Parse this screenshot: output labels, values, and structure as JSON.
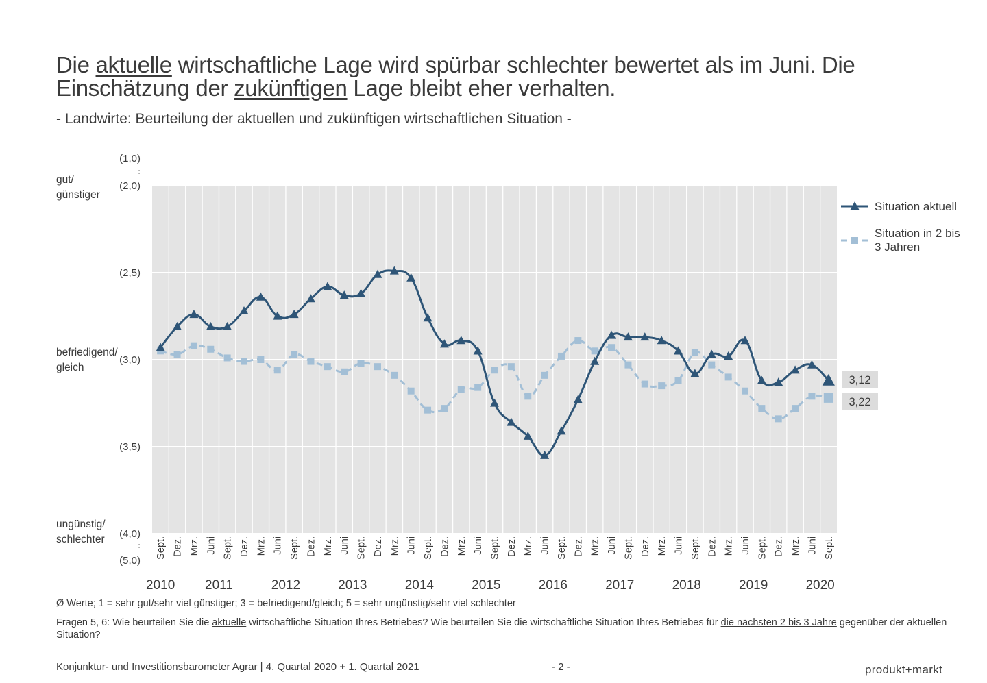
{
  "title": {
    "part1": "Die ",
    "u1": "aktuelle",
    "part2": " wirtschaftliche Lage wird spürbar schlechter bewertet als im Juni. Die Einschätzung der ",
    "u2": "zukünftigen",
    "part3": " Lage bleibt eher verhalten."
  },
  "subtitle": "- Landwirte: Beurteilung der aktuellen und zukünftigen wirtschaftlichen Situation -",
  "side_labels": {
    "good_1": "gut/",
    "good_2": "günstiger",
    "mid_1": "befriedigend/",
    "mid_2": "gleich",
    "bad_1": "ungünstig/",
    "bad_2": "schlechter"
  },
  "chart_data": {
    "type": "line",
    "ylim": [
      2.0,
      4.0
    ],
    "y_inverted": true,
    "grid": true,
    "legend_position": "right",
    "y_ticks": [
      {
        "value": 2.0,
        "label": "(2,0)"
      },
      {
        "value": 2.5,
        "label": "(2,5)"
      },
      {
        "value": 3.0,
        "label": "(3,0)"
      },
      {
        "value": 3.5,
        "label": "(3,5)"
      },
      {
        "value": 4.0,
        "label": "(4,0)"
      }
    ],
    "y_extra_labels": {
      "top": "(1,0)",
      "bottom": "(5,0)"
    },
    "x": [
      "Sept.",
      "Dez.",
      "Mrz.",
      "Juni",
      "Sept.",
      "Dez.",
      "Mrz.",
      "Juni",
      "Sept.",
      "Dez.",
      "Mrz.",
      "Juni",
      "Sept.",
      "Dez.",
      "Mrz.",
      "Juni",
      "Sept.",
      "Dez.",
      "Mrz.",
      "Juni",
      "Sept.",
      "Dez.",
      "Mrz.",
      "Juni",
      "Sept.",
      "Dez.",
      "Mrz.",
      "Juni",
      "Sept.",
      "Dez.",
      "Mrz.",
      "Juni",
      "Sept.",
      "Dez.",
      "Mrz.",
      "Juni",
      "Sept.",
      "Dez.",
      "Mrz.",
      "Juni",
      "Sept."
    ],
    "years": [
      {
        "label": "2010",
        "index": 0
      },
      {
        "label": "2011",
        "index": 3.5
      },
      {
        "label": "2012",
        "index": 7.5
      },
      {
        "label": "2013",
        "index": 11.5
      },
      {
        "label": "2014",
        "index": 15.5
      },
      {
        "label": "2015",
        "index": 19.5
      },
      {
        "label": "2016",
        "index": 23.5
      },
      {
        "label": "2017",
        "index": 27.5
      },
      {
        "label": "2018",
        "index": 31.5
      },
      {
        "label": "2019",
        "index": 35.5
      },
      {
        "label": "2020",
        "index": 39.5
      }
    ],
    "series": [
      {
        "name": "Situation aktuell",
        "color": "#2e5577",
        "marker": "triangle",
        "values": [
          2.93,
          2.81,
          2.74,
          2.81,
          2.81,
          2.72,
          2.64,
          2.75,
          2.74,
          2.65,
          2.58,
          2.63,
          2.62,
          2.51,
          2.49,
          2.53,
          2.76,
          2.91,
          2.89,
          2.95,
          3.25,
          3.36,
          3.44,
          3.55,
          3.41,
          3.23,
          3.01,
          2.86,
          2.87,
          2.87,
          2.89,
          2.95,
          3.08,
          2.97,
          2.98,
          2.89,
          3.12,
          3.13,
          3.06,
          3.03,
          3.12
        ]
      },
      {
        "name": "Situation in 2 bis 3 Jahren",
        "color": "#a3bfd6",
        "marker": "square",
        "values": [
          2.95,
          2.97,
          2.92,
          2.94,
          2.99,
          3.01,
          3.0,
          3.06,
          2.97,
          3.01,
          3.04,
          3.07,
          3.02,
          3.04,
          3.09,
          3.18,
          3.29,
          3.28,
          3.17,
          3.16,
          3.06,
          3.04,
          3.21,
          3.09,
          2.98,
          2.89,
          2.95,
          2.93,
          3.03,
          3.14,
          3.15,
          3.12,
          2.96,
          3.03,
          3.1,
          3.18,
          3.28,
          3.34,
          3.28,
          3.21,
          3.22
        ]
      }
    ],
    "end_labels": [
      "3,12",
      "3,22"
    ]
  },
  "footnote": "Ø Werte; 1 = sehr gut/sehr viel günstiger; 3 = befriedigend/gleich; 5 = sehr ungünstig/sehr viel schlechter",
  "question": {
    "p1": "Fragen 5, 6: Wie beurteilen Sie die ",
    "u1": "aktuelle",
    "p2": " wirtschaftliche Situation Ihres Betriebes? Wie beurteilen Sie die wirtschaftliche Situation Ihres Betriebes für ",
    "u2": "die nächsten 2 bis 3 Jahre",
    "p3": " gegenüber der aktuellen Situation?"
  },
  "footer": {
    "left": "Konjunktur- und Investitionsbarometer Agrar | 4. Quartal 2020 + 1. Quartal 2021",
    "page": "- 2 -",
    "brand": "produkt+markt"
  }
}
